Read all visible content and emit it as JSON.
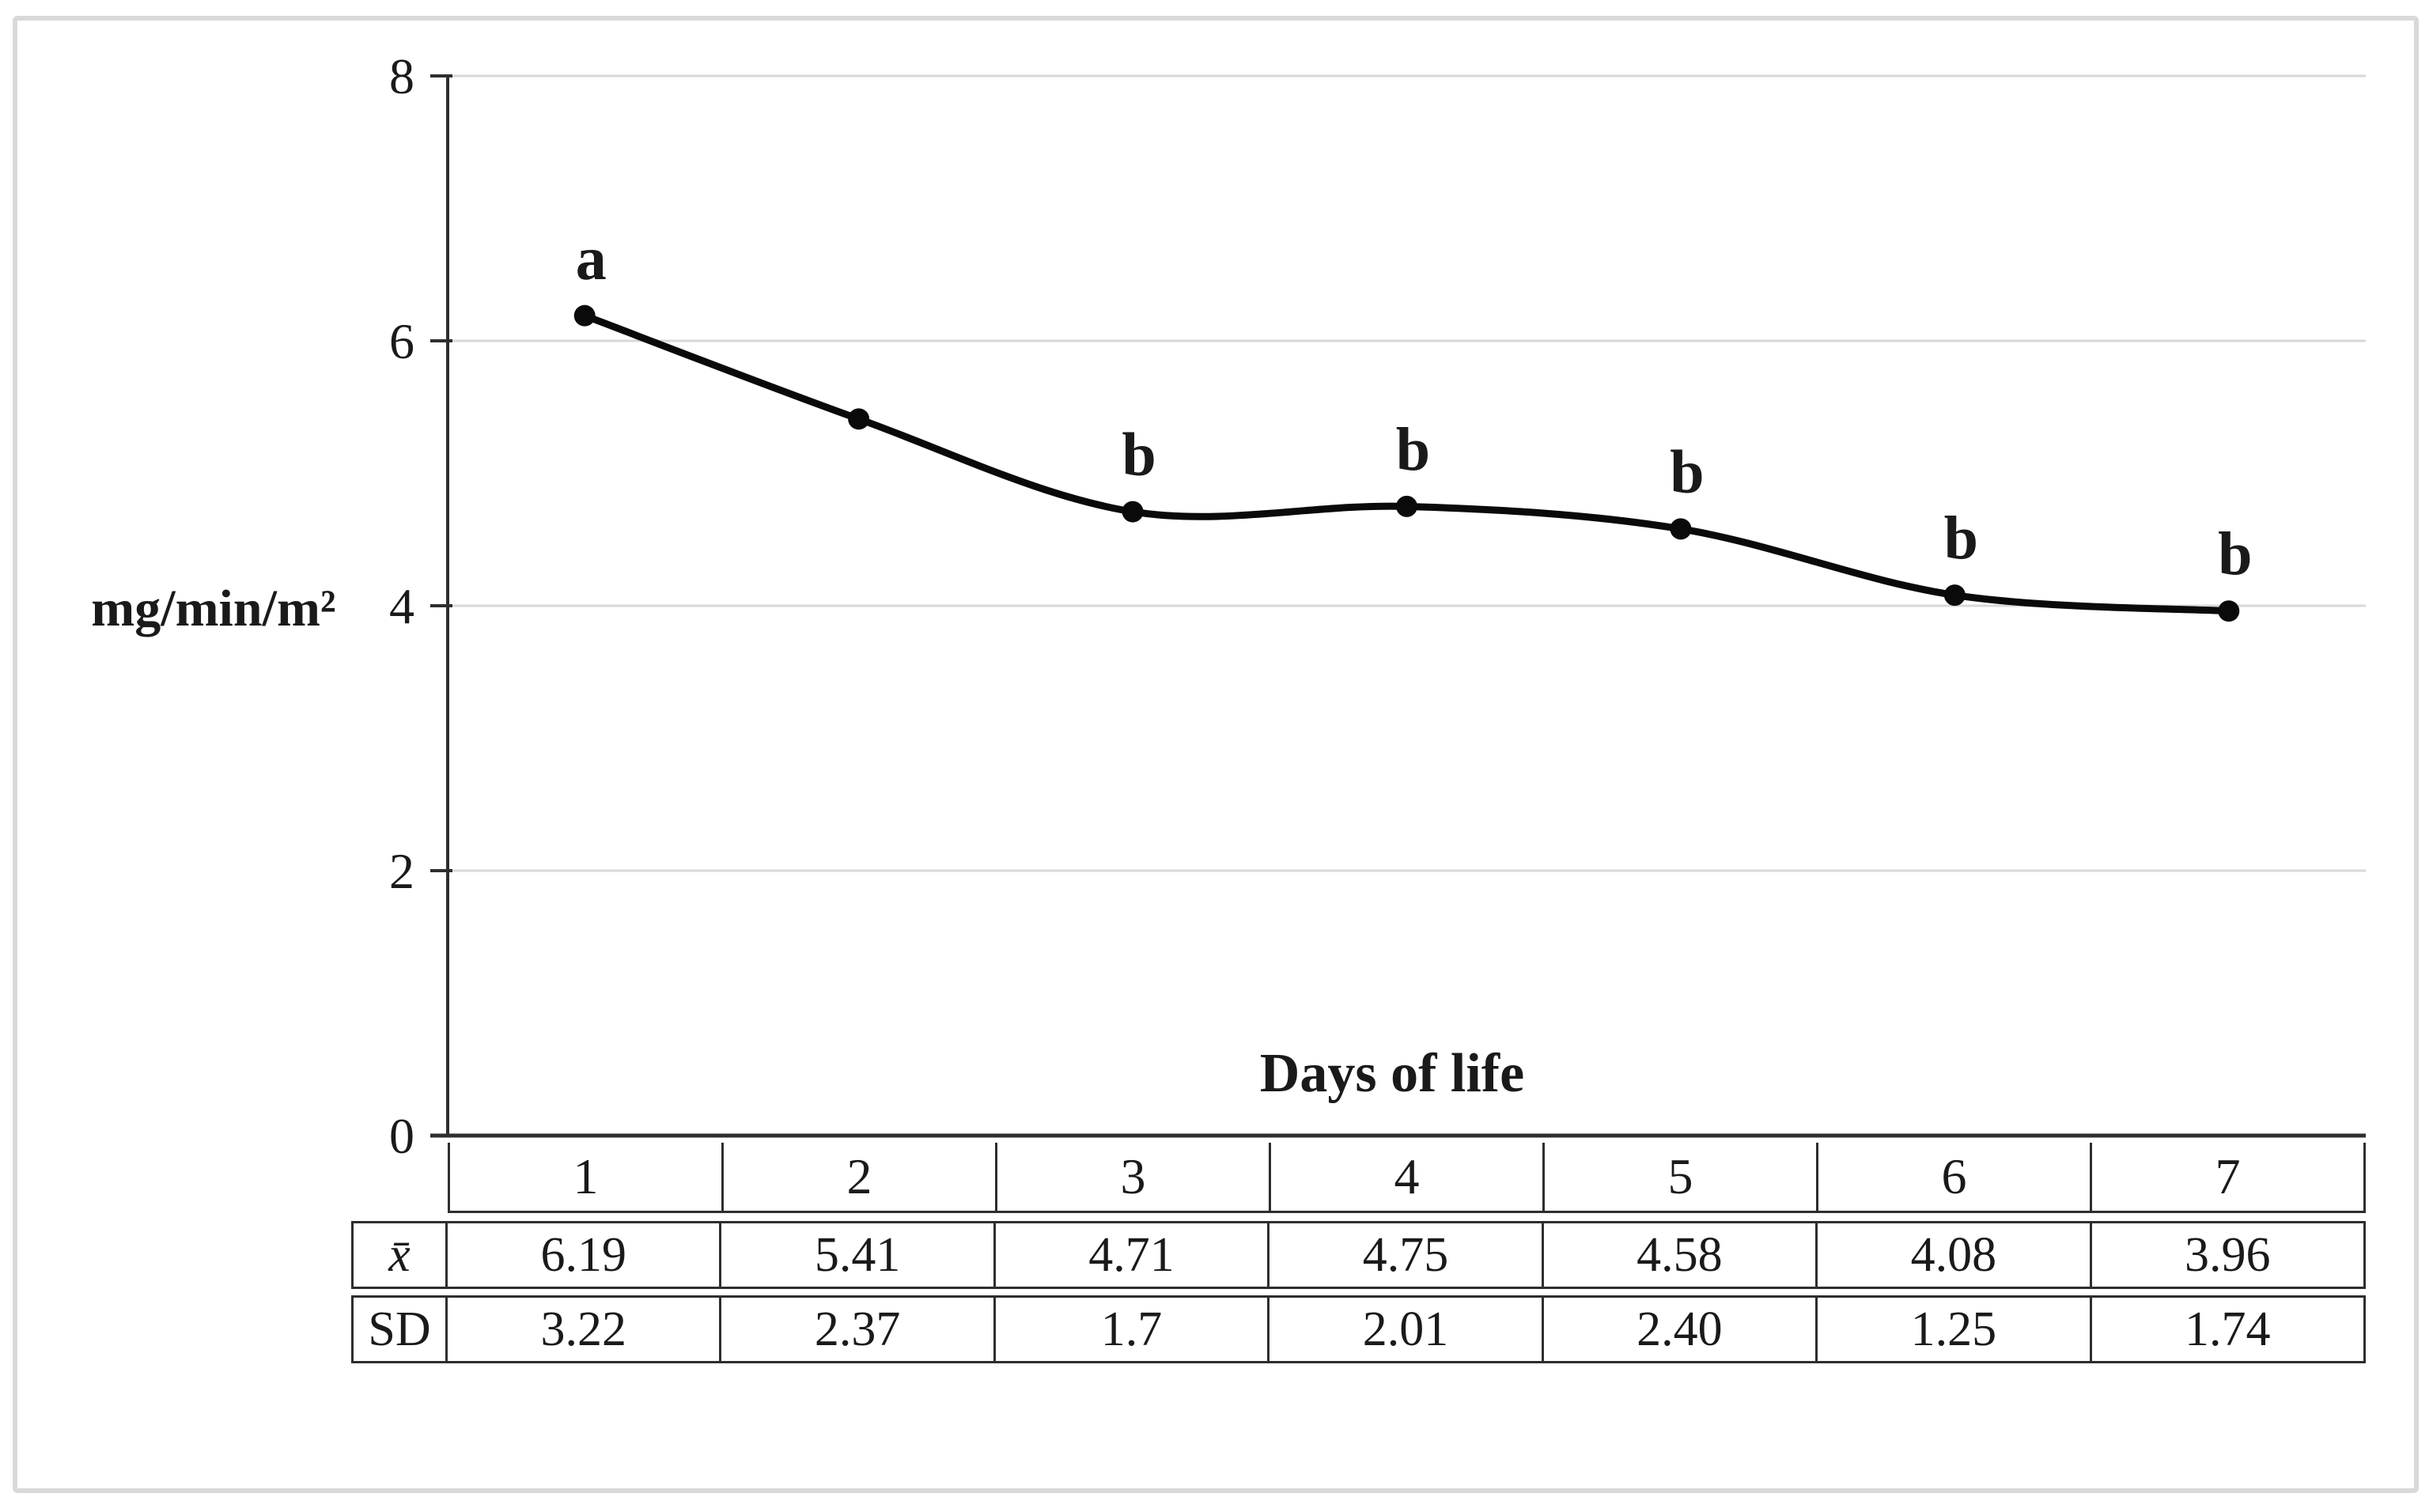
{
  "chart_data": {
    "type": "line",
    "title": "",
    "xlabel": "Days of life",
    "ylabel": "mg/min/m²",
    "categories": [
      "1",
      "2",
      "3",
      "4",
      "5",
      "6",
      "7"
    ],
    "series": [
      {
        "name": "x̄",
        "values": [
          6.19,
          5.41,
          4.71,
          4.75,
          4.58,
          4.08,
          3.96
        ],
        "plotted": true
      },
      {
        "name": "SD",
        "values": [
          3.22,
          2.37,
          1.7,
          2.01,
          2.4,
          1.25,
          1.74
        ],
        "plotted": false
      }
    ],
    "point_labels": [
      "a",
      "",
      "b",
      "b",
      "b",
      "b",
      "b"
    ],
    "ylim": [
      0,
      8
    ],
    "yticks": [
      0,
      2,
      4,
      6,
      8
    ],
    "grid": true,
    "legend": "none",
    "line_style": "smooth",
    "marker": "filled-circle"
  },
  "table": {
    "header_row": [
      "1",
      "2",
      "3",
      "4",
      "5",
      "6",
      "7"
    ],
    "rows": [
      {
        "label": "x̄",
        "values": [
          "6.19",
          "5.41",
          "4.71",
          "4.75",
          "4.58",
          "4.08",
          "3.96"
        ]
      },
      {
        "label": "SD",
        "values": [
          "3.22",
          "2.37",
          "1.7",
          "2.01",
          "2.40",
          "1.25",
          "1.74"
        ]
      }
    ]
  },
  "colors": {
    "line": "#0a0a0a",
    "marker": "#0a0a0a",
    "grid": "#d8d8d8",
    "axis": "#2e2e2e",
    "text": "#1a1a1a",
    "table_border": "#2e2e2e",
    "frame_border": "#d9d9d9",
    "background": "#ffffff"
  }
}
